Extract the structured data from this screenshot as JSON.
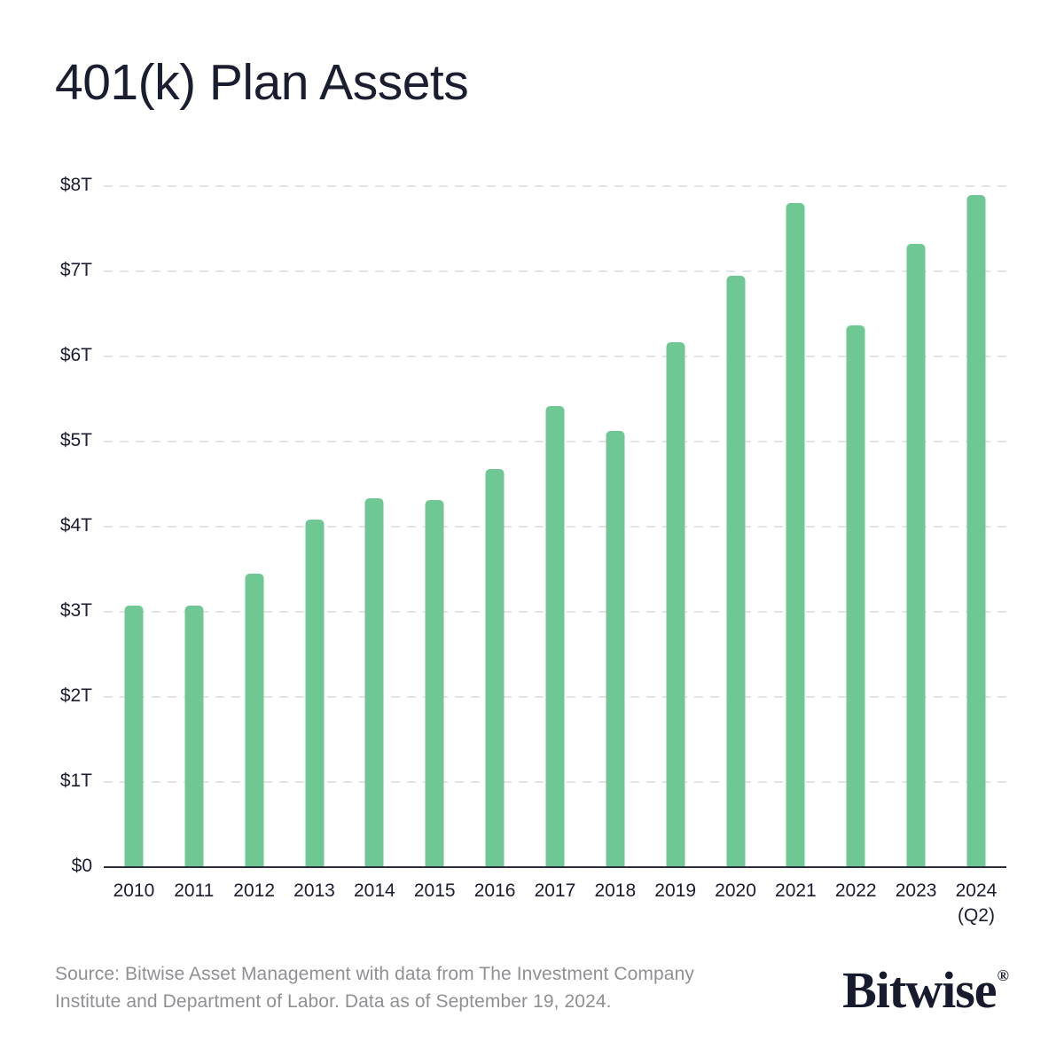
{
  "chart_data": {
    "type": "bar",
    "title": "401(k) Plan Assets",
    "categories": [
      "2010",
      "2011",
      "2012",
      "2013",
      "2014",
      "2015",
      "2016",
      "2017",
      "2018",
      "2019",
      "2020",
      "2021",
      "2022",
      "2023",
      "2024"
    ],
    "category_sublabels": [
      "",
      "",
      "",
      "",
      "",
      "",
      "",
      "",
      "",
      "",
      "",
      "",
      "",
      "",
      "(Q2)"
    ],
    "values": [
      3.07,
      3.07,
      3.45,
      4.08,
      4.33,
      4.31,
      4.68,
      5.42,
      5.13,
      6.17,
      6.95,
      7.8,
      6.36,
      7.32,
      7.9
    ],
    "value_unit": "USD trillions",
    "ylim": [
      0,
      8
    ],
    "y_ticks": [
      {
        "label": "$8T",
        "value": 8
      },
      {
        "label": "$7T",
        "value": 7
      },
      {
        "label": "$6T",
        "value": 6
      },
      {
        "label": "$5T",
        "value": 5
      },
      {
        "label": "$4T",
        "value": 4
      },
      {
        "label": "$3T",
        "value": 3
      },
      {
        "label": "$2T",
        "value": 2
      },
      {
        "label": "$1T",
        "value": 1
      },
      {
        "label": "$0",
        "value": 0
      }
    ],
    "xlabel": "",
    "ylabel": "",
    "legend": "none",
    "grid": "horizontal-dashed"
  },
  "colors": {
    "bar_green": "#6fc794",
    "navy_text": "#1b1d30",
    "gray_text": "#8e9093",
    "gridline": "#e5e5e7",
    "axis_line": "#2b2c3e",
    "background": "#ffffff"
  },
  "footer": {
    "source_line1": "Source: Bitwise Asset Management with data from The Investment Company",
    "source_line2": "Institute and Department of Labor. Data as of September 19, 2024.",
    "brand_name": "Bitwise",
    "brand_registered_mark": "®"
  }
}
